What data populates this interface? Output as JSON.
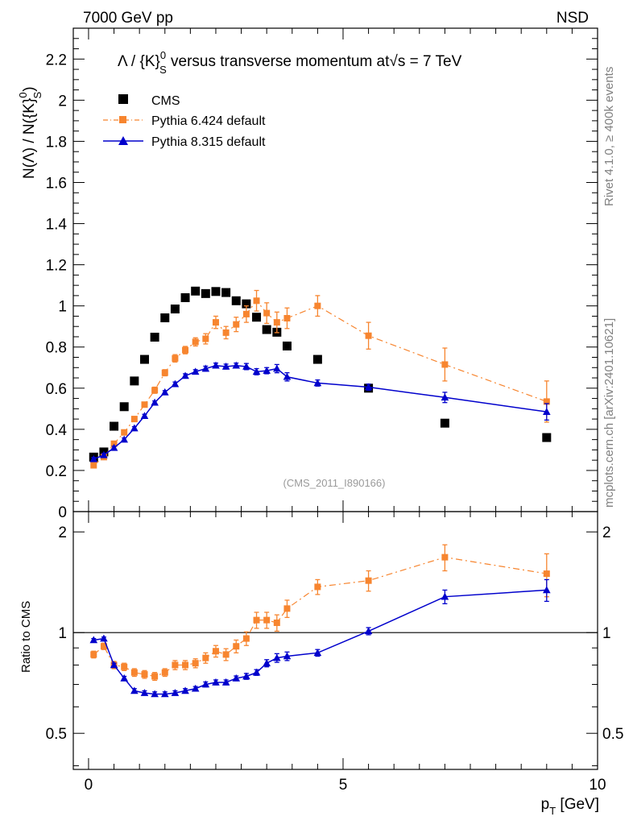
{
  "header": {
    "left": "7000 GeV pp",
    "right": "NSD"
  },
  "side_text": {
    "rivet": "Rivet 4.1.0, ≥ 400k events",
    "mcplots": "mcplots.cern.ch [arXiv:2401.10621]"
  },
  "watermark": "(CMS_2011_I890166)",
  "title": {
    "part1": "Λ / {K}",
    "sup": "0",
    "sub": "S",
    "part2": " versus transverse momentum at",
    "sqrt": "√",
    "s": "s",
    "part3": " = 7 TeV"
  },
  "ylabel_main": "N(Λ)  /  N({K}",
  "ylabel_main_sup": "0",
  "ylabel_main_sub": "S",
  "ylabel_main_end": ")",
  "ylabel_ratio": "Ratio to CMS",
  "xlabel": {
    "p": "p",
    "sub": "T",
    "rest": " [GeV]"
  },
  "chart_data": {
    "type": "scatter",
    "title": "Λ / {K}^0_S versus transverse momentum at √s = 7 TeV",
    "xlabel": "p_T [GeV]",
    "ylabel": "N(Λ) / N({K}^0_S)",
    "xlim": [
      -0.3,
      10
    ],
    "ylim": [
      0,
      2.35
    ],
    "x_ticks": [
      {
        "v": 0,
        "label": "0"
      },
      {
        "v": 5,
        "label": "5"
      },
      {
        "v": 10,
        "label": "10"
      }
    ],
    "y_ticks": [
      {
        "v": 0,
        "label": "0"
      },
      {
        "v": 0.2,
        "label": "0.2"
      },
      {
        "v": 0.4,
        "label": "0.4"
      },
      {
        "v": 0.6,
        "label": "0.6"
      },
      {
        "v": 0.8,
        "label": "0.8"
      },
      {
        "v": 1.0,
        "label": "1"
      },
      {
        "v": 1.2,
        "label": "1.2"
      },
      {
        "v": 1.4,
        "label": "1.4"
      },
      {
        "v": 1.6,
        "label": "1.6"
      },
      {
        "v": 1.8,
        "label": "1.8"
      },
      {
        "v": 2.0,
        "label": "2"
      },
      {
        "v": 2.2,
        "label": "2.2"
      }
    ],
    "ratio": {
      "ylabel": "Ratio to CMS",
      "ylim": [
        0.39,
        2.3
      ],
      "log": true,
      "ticks": [
        {
          "v": 0.5,
          "label": "0.5"
        },
        {
          "v": 1.0,
          "label": "1"
        },
        {
          "v": 2.0,
          "label": "2"
        }
      ],
      "reference": 1.0
    },
    "legend_position": "top-left",
    "series": [
      {
        "name": "CMS",
        "color": "#000000",
        "marker": "square",
        "x": [
          0.1,
          0.3,
          0.5,
          0.7,
          0.9,
          1.1,
          1.3,
          1.5,
          1.7,
          1.9,
          2.1,
          2.3,
          2.5,
          2.7,
          2.9,
          3.1,
          3.3,
          3.5,
          3.7,
          3.9,
          4.5,
          5.5,
          7.0,
          9.0
        ],
        "y": [
          0.265,
          0.29,
          0.415,
          0.51,
          0.635,
          0.74,
          0.848,
          0.942,
          0.985,
          1.04,
          1.072,
          1.06,
          1.07,
          1.065,
          1.025,
          1.01,
          0.945,
          0.885,
          0.872,
          0.805,
          0.74,
          0.6,
          0.43,
          0.36
        ]
      },
      {
        "name": "Pythia 6.424 default",
        "color": "#f7852f",
        "marker": "square",
        "line": "dashdot",
        "x": [
          0.1,
          0.3,
          0.5,
          0.7,
          0.9,
          1.1,
          1.3,
          1.5,
          1.7,
          1.9,
          2.1,
          2.3,
          2.5,
          2.7,
          2.9,
          3.1,
          3.3,
          3.5,
          3.7,
          3.9,
          4.5,
          5.5,
          7.0,
          9.0
        ],
        "y": [
          0.225,
          0.265,
          0.33,
          0.385,
          0.45,
          0.52,
          0.59,
          0.675,
          0.745,
          0.785,
          0.825,
          0.84,
          0.92,
          0.87,
          0.91,
          0.96,
          1.025,
          0.965,
          0.92,
          0.94,
          1.0,
          0.855,
          0.715,
          0.535
        ],
        "err": [
          0.01,
          0.01,
          0.01,
          0.01,
          0.012,
          0.012,
          0.015,
          0.015,
          0.018,
          0.018,
          0.02,
          0.025,
          0.03,
          0.03,
          0.035,
          0.04,
          0.05,
          0.05,
          0.05,
          0.05,
          0.05,
          0.065,
          0.08,
          0.1
        ],
        "ratio": [
          0.86,
          0.91,
          0.8,
          0.79,
          0.76,
          0.75,
          0.74,
          0.76,
          0.8,
          0.8,
          0.81,
          0.84,
          0.88,
          0.86,
          0.91,
          0.96,
          1.09,
          1.09,
          1.07,
          1.18,
          1.37,
          1.43,
          1.68,
          1.5
        ],
        "ratio_err": [
          0.02,
          0.02,
          0.02,
          0.02,
          0.02,
          0.02,
          0.02,
          0.02,
          0.025,
          0.025,
          0.025,
          0.03,
          0.035,
          0.035,
          0.04,
          0.045,
          0.06,
          0.06,
          0.06,
          0.07,
          0.07,
          0.1,
          0.15,
          0.22
        ]
      },
      {
        "name": "Pythia 8.315 default",
        "color": "#0000cc",
        "marker": "triangle",
        "line": "solid",
        "x": [
          0.1,
          0.3,
          0.5,
          0.7,
          0.9,
          1.1,
          1.3,
          1.5,
          1.7,
          1.9,
          2.1,
          2.3,
          2.5,
          2.7,
          2.9,
          3.1,
          3.3,
          3.5,
          3.7,
          3.9,
          4.5,
          5.5,
          7.0,
          9.0
        ],
        "y": [
          0.255,
          0.275,
          0.31,
          0.35,
          0.405,
          0.465,
          0.53,
          0.58,
          0.62,
          0.66,
          0.68,
          0.695,
          0.71,
          0.705,
          0.71,
          0.705,
          0.68,
          0.685,
          0.695,
          0.655,
          0.625,
          0.605,
          0.555,
          0.485
        ],
        "err": [
          0.008,
          0.008,
          0.008,
          0.008,
          0.008,
          0.008,
          0.008,
          0.008,
          0.01,
          0.01,
          0.01,
          0.012,
          0.012,
          0.012,
          0.012,
          0.015,
          0.015,
          0.015,
          0.02,
          0.02,
          0.015,
          0.015,
          0.025,
          0.04
        ],
        "ratio": [
          0.95,
          0.96,
          0.8,
          0.73,
          0.67,
          0.66,
          0.655,
          0.655,
          0.66,
          0.67,
          0.68,
          0.7,
          0.71,
          0.71,
          0.73,
          0.74,
          0.76,
          0.81,
          0.84,
          0.85,
          0.87,
          1.01,
          1.28,
          1.34
        ],
        "ratio_err": [
          0.01,
          0.01,
          0.01,
          0.01,
          0.01,
          0.01,
          0.01,
          0.01,
          0.01,
          0.01,
          0.01,
          0.012,
          0.012,
          0.012,
          0.012,
          0.015,
          0.015,
          0.02,
          0.025,
          0.025,
          0.02,
          0.025,
          0.06,
          0.1
        ]
      }
    ]
  }
}
